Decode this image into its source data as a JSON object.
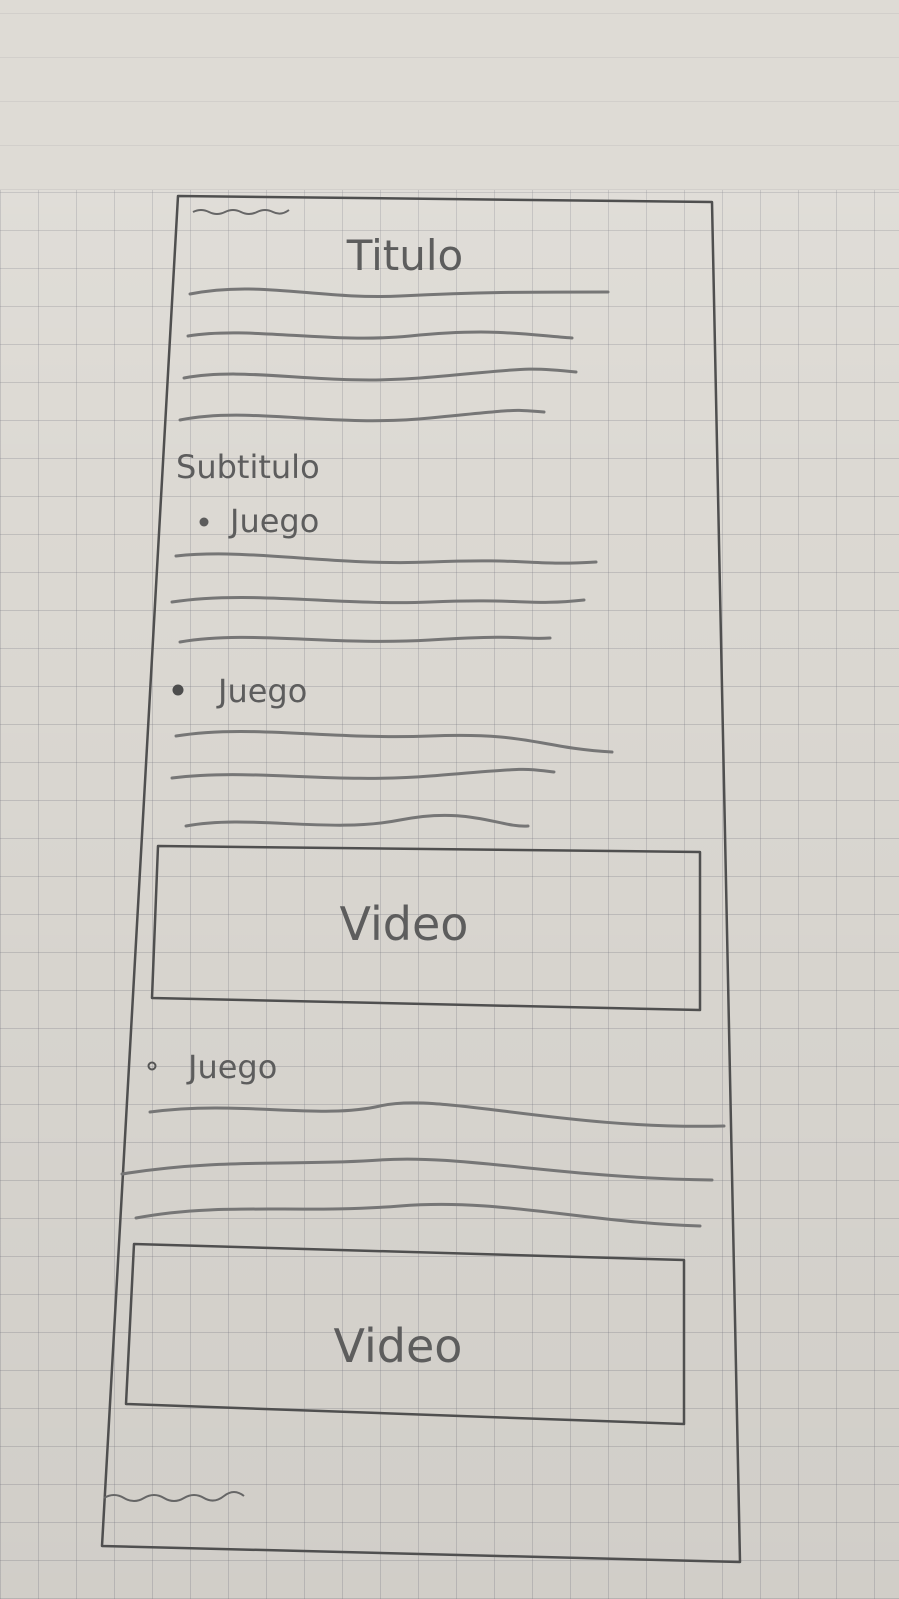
{
  "title": "Titulo",
  "subtitle": "Subtitulo",
  "items": [
    {
      "label": "Juego"
    },
    {
      "label": "Juego"
    },
    {
      "label": "Juego"
    }
  ],
  "videos": [
    {
      "label": "Video"
    },
    {
      "label": "Video"
    }
  ]
}
